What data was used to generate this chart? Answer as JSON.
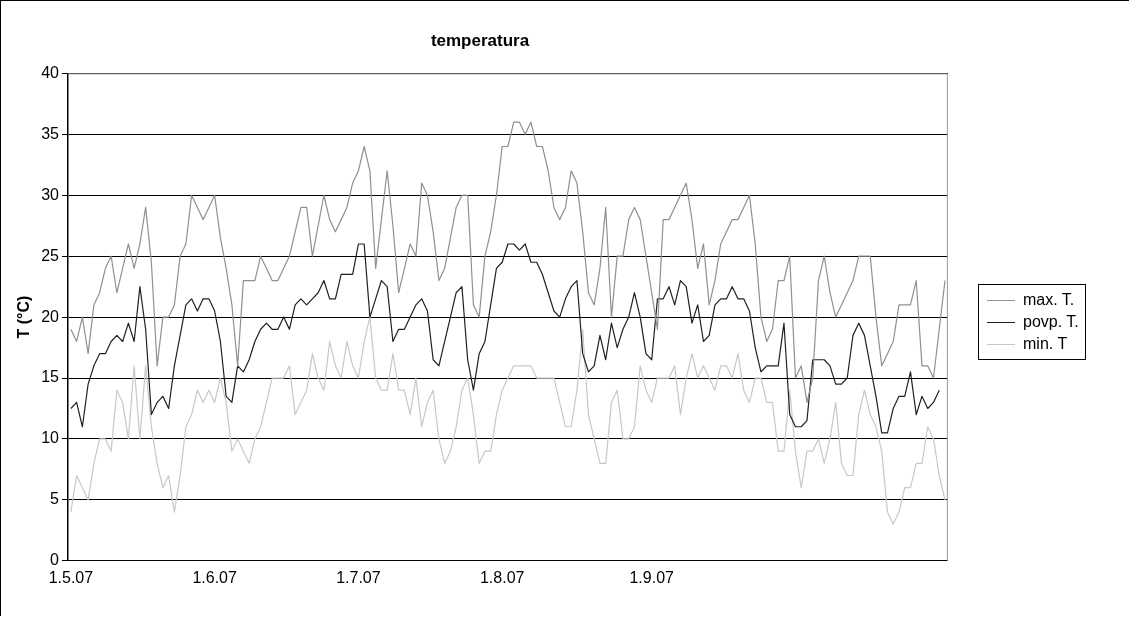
{
  "chart_data": {
    "type": "line",
    "title": "temperatura",
    "ylabel": "T (°C)",
    "categories": [
      "1.5.07",
      null,
      null,
      null,
      null,
      null,
      null,
      null,
      null,
      null,
      null,
      null,
      null,
      null,
      null,
      null,
      null,
      null,
      null,
      null,
      null,
      null,
      null,
      null,
      null,
      "1.6.07",
      null,
      null,
      null,
      null,
      null,
      null,
      null,
      null,
      null,
      null,
      null,
      null,
      null,
      null,
      null,
      null,
      null,
      null,
      null,
      null,
      null,
      null,
      null,
      null,
      "1.7.07",
      null,
      null,
      null,
      null,
      null,
      null,
      null,
      null,
      null,
      null,
      null,
      null,
      null,
      null,
      null,
      null,
      null,
      null,
      null,
      null,
      null,
      null,
      null,
      null,
      "1.8.07",
      null,
      null,
      null,
      null,
      null,
      null,
      null,
      null,
      null,
      null,
      null,
      null,
      null,
      null,
      null,
      null,
      null,
      null,
      null,
      null,
      null,
      null,
      null,
      null,
      null,
      "1.9.07",
      null,
      null,
      null,
      null,
      null,
      null,
      null,
      null,
      null,
      null,
      null,
      null,
      null,
      null,
      null,
      null,
      null,
      null,
      null,
      null,
      null,
      null,
      null,
      null,
      null,
      null,
      null,
      null,
      null,
      null,
      null,
      null,
      null,
      null,
      null,
      null,
      null,
      null,
      null,
      null,
      null,
      null,
      null,
      null,
      null,
      null,
      null,
      null,
      null,
      null,
      null
    ],
    "series": [
      {
        "name": "max. T.",
        "color": "#909090",
        "values": [
          19,
          18,
          20,
          17,
          21,
          22,
          24,
          25,
          22,
          24,
          26,
          24,
          26,
          29,
          24.5,
          16,
          20,
          20,
          21,
          25,
          26,
          30,
          29,
          28,
          29,
          30,
          26.5,
          24,
          21,
          16,
          23,
          23,
          23,
          25,
          24,
          23,
          23,
          24,
          25,
          27,
          29,
          29,
          25,
          27.5,
          30,
          28,
          27,
          28,
          29,
          31,
          32,
          34,
          32,
          24,
          28,
          32,
          27.5,
          22,
          24,
          26,
          25,
          31,
          30,
          27,
          23,
          24,
          26.5,
          29,
          30,
          30,
          21,
          20,
          25,
          27,
          30,
          34,
          34,
          36,
          36,
          35,
          36,
          34,
          34,
          32,
          29,
          28,
          29,
          32,
          31,
          27,
          22,
          21,
          24,
          29,
          20,
          25,
          25,
          28,
          29,
          28,
          25,
          22,
          19,
          28,
          28,
          29,
          30,
          31,
          28,
          24,
          26,
          21,
          23,
          26,
          27,
          28,
          28,
          29,
          30,
          26,
          20,
          18,
          19,
          23,
          23,
          25,
          15,
          16,
          13,
          15,
          23,
          25,
          22,
          20,
          21,
          22,
          23,
          25,
          25,
          25,
          20,
          16,
          17,
          18,
          21,
          21,
          21,
          23,
          16,
          16,
          15,
          19,
          23
        ]
      },
      {
        "name": "povp. T.",
        "color": "#202020",
        "values": [
          12.5,
          13,
          11,
          14.5,
          16,
          17,
          17,
          18,
          18.5,
          18,
          19.5,
          18,
          22.5,
          19,
          12,
          13,
          13.5,
          12.5,
          16,
          18.5,
          21,
          21.5,
          20.5,
          21.5,
          21.5,
          20.5,
          18,
          13.5,
          13,
          16,
          15.5,
          16.5,
          18,
          19,
          19.5,
          19,
          19,
          20,
          19,
          21,
          21.5,
          21,
          21.5,
          22,
          23,
          21.5,
          21.5,
          23.5,
          23.5,
          23.5,
          26,
          26,
          20,
          21.5,
          23,
          22.5,
          18,
          19,
          19,
          20,
          21,
          21.5,
          20.5,
          16.5,
          16,
          18,
          20,
          22,
          22.5,
          16.5,
          14,
          17,
          18,
          21,
          24,
          24.5,
          26,
          26,
          25.5,
          26,
          24.5,
          24.5,
          23.5,
          22,
          20.5,
          20,
          21.5,
          22.5,
          23,
          17,
          15.5,
          16,
          18.5,
          16.5,
          19.5,
          17.5,
          19,
          20,
          22,
          20,
          17,
          16.5,
          21.5,
          21.5,
          22.5,
          21,
          23,
          22.5,
          19.5,
          21,
          18,
          18.5,
          21,
          21.5,
          21.5,
          22.5,
          21.5,
          21.5,
          20.5,
          17.5,
          15.5,
          16,
          16,
          16,
          19.5,
          12,
          11,
          11,
          11.5,
          16.5,
          16.5,
          16.5,
          16,
          14.5,
          14.5,
          15,
          18.5,
          19.5,
          18.5,
          16,
          13.5,
          10.5,
          10.5,
          12.5,
          13.5,
          13.5,
          15.5,
          12,
          13.5,
          12.5,
          13,
          14,
          null
        ]
      },
      {
        "name": "min. T",
        "color": "#c8c8c8",
        "values": [
          4,
          7,
          6,
          5,
          8,
          10,
          10,
          9,
          14,
          13,
          10,
          16,
          10,
          16,
          11,
          8,
          6,
          7,
          4,
          7,
          11,
          12,
          14,
          13,
          14,
          13,
          15,
          13,
          9,
          10,
          9,
          8,
          10,
          11,
          13,
          15,
          15,
          15,
          16,
          12,
          13,
          14,
          17,
          15,
          14,
          18,
          16,
          15,
          18,
          16,
          15,
          18,
          20,
          15,
          14,
          14,
          17,
          14,
          14,
          12,
          15,
          11,
          13,
          14,
          10,
          8,
          9,
          11,
          14,
          15,
          12,
          8,
          9,
          9,
          12,
          14,
          15,
          16,
          16,
          16,
          16,
          15,
          15,
          15,
          15,
          13,
          11,
          11,
          14,
          19,
          12,
          10,
          8,
          8,
          13,
          14,
          10,
          10,
          11,
          16,
          14,
          13,
          15,
          15,
          15,
          16,
          12,
          15,
          17,
          15,
          16,
          15,
          14,
          16,
          16,
          15,
          17,
          14,
          13,
          15,
          15,
          13,
          13,
          9,
          9,
          14,
          9,
          6,
          9,
          9,
          10,
          8,
          10,
          13,
          8,
          7,
          7,
          12,
          14,
          12,
          11,
          9,
          4,
          3,
          4,
          6,
          6,
          8,
          8,
          11,
          10,
          7,
          5
        ]
      }
    ],
    "ylim": [
      0,
      40
    ],
    "yticks": [
      0,
      5,
      10,
      15,
      20,
      25,
      30,
      35,
      40
    ],
    "grid": "y",
    "legend": "right",
    "marker": "none",
    "line_style": "solid"
  }
}
